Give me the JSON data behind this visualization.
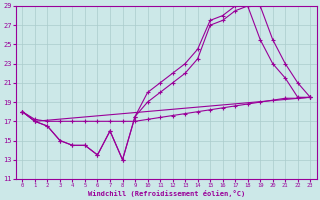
{
  "xlabel": "Windchill (Refroidissement éolien,°C)",
  "bg_color": "#cce8e8",
  "grid_color": "#aacccc",
  "line_color": "#990099",
  "xlim": [
    -0.5,
    23.5
  ],
  "ylim": [
    11,
    29
  ],
  "xticks": [
    0,
    1,
    2,
    3,
    4,
    5,
    6,
    7,
    8,
    9,
    10,
    11,
    12,
    13,
    14,
    15,
    16,
    17,
    18,
    19,
    20,
    21,
    22,
    23
  ],
  "yticks": [
    11,
    13,
    15,
    17,
    19,
    21,
    23,
    25,
    27,
    29
  ],
  "line1_x": [
    0,
    1,
    2,
    3,
    4,
    5,
    6,
    7,
    8,
    9,
    10,
    11,
    12,
    13,
    14,
    15,
    16,
    17,
    18,
    19,
    20,
    21,
    22,
    23
  ],
  "line1_y": [
    18,
    17.2,
    17.0,
    17.0,
    17.0,
    17.0,
    17.0,
    17.0,
    17.0,
    17.0,
    17.2,
    17.4,
    17.6,
    17.8,
    18.0,
    18.2,
    18.4,
    18.6,
    18.8,
    19.0,
    19.2,
    19.4,
    19.4,
    19.5
  ],
  "line2_x": [
    0,
    1,
    2,
    3,
    4,
    5,
    6,
    7,
    8,
    9,
    10,
    11,
    12,
    13,
    14,
    15,
    16,
    17,
    18,
    19,
    20,
    21,
    22,
    23
  ],
  "line2_y": [
    18,
    17.0,
    16.5,
    15.0,
    14.5,
    14.5,
    13.5,
    16.0,
    13.0,
    17.5,
    19.0,
    20.0,
    21.0,
    22.0,
    23.5,
    27.0,
    27.5,
    28.5,
    29.0,
    25.5,
    23.0,
    21.5,
    19.5,
    19.5
  ],
  "line3_x": [
    0,
    1,
    2,
    3,
    4,
    5,
    6,
    7,
    8,
    9,
    10,
    11,
    12,
    13,
    14,
    15,
    16,
    17,
    18,
    19,
    20,
    21,
    22,
    23
  ],
  "line3_y": [
    18,
    17.0,
    16.5,
    15.0,
    14.5,
    14.5,
    13.5,
    16.0,
    13.0,
    17.5,
    20.0,
    21.0,
    22.0,
    23.0,
    24.5,
    27.5,
    28.0,
    29.0,
    29.0,
    29.0,
    25.5,
    23.0,
    21.0,
    19.5
  ],
  "line4_x": [
    0,
    1,
    23
  ],
  "line4_y": [
    18,
    17.0,
    19.5
  ]
}
